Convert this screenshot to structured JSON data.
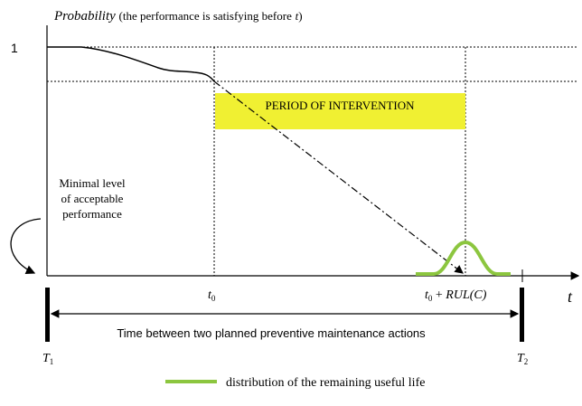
{
  "y_axis": {
    "label": "Probability",
    "note": "(the performance is satisfying before",
    "note_var": "t",
    "note_close": ")",
    "one": "1"
  },
  "intervention": "PERIOD OF INTERVENTION",
  "minimal_level": [
    "Minimal level",
    "of acceptable",
    "performance"
  ],
  "t0": {
    "var": "t",
    "sub": "0"
  },
  "rul": {
    "var": "t",
    "sub": "0",
    "plus": "+",
    "fn": "RUL",
    "arg": "(C)"
  },
  "x_axis": {
    "label": "t"
  },
  "span": "Time between two planned preventive maintenance actions",
  "T1": {
    "var": "T",
    "sub": "1"
  },
  "T2": {
    "var": "T",
    "sub": "2"
  },
  "legend": "distribution of the remaining useful life"
}
